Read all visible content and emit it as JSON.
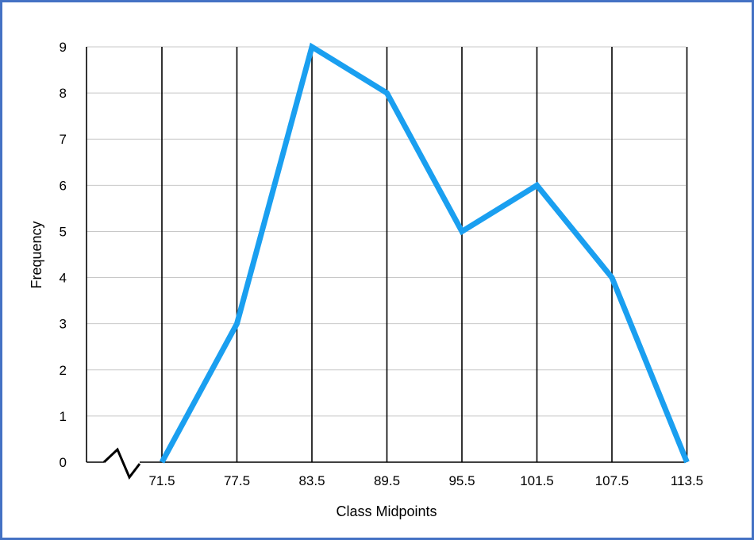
{
  "chart_data": {
    "type": "line",
    "title": "",
    "xlabel": "Class Midpoints",
    "ylabel": "Frequency",
    "x": [
      "71.5",
      "77.5",
      "83.5",
      "89.5",
      "95.5",
      "101.5",
      "107.5",
      "113.5"
    ],
    "series": [
      {
        "values": [
          0,
          3,
          9,
          8,
          5,
          6,
          4,
          0
        ]
      }
    ],
    "y_ticks": [
      "0",
      "1",
      "2",
      "3",
      "4",
      "5",
      "6",
      "7",
      "8",
      "9"
    ],
    "ylim": [
      0,
      9
    ],
    "grid": true,
    "axis_break": true,
    "legend": "none",
    "colors": {
      "line": "#1a9ff0",
      "frame": "#4472c4",
      "vgrid": "#000000",
      "hgrid": "#c8c8c8"
    }
  }
}
